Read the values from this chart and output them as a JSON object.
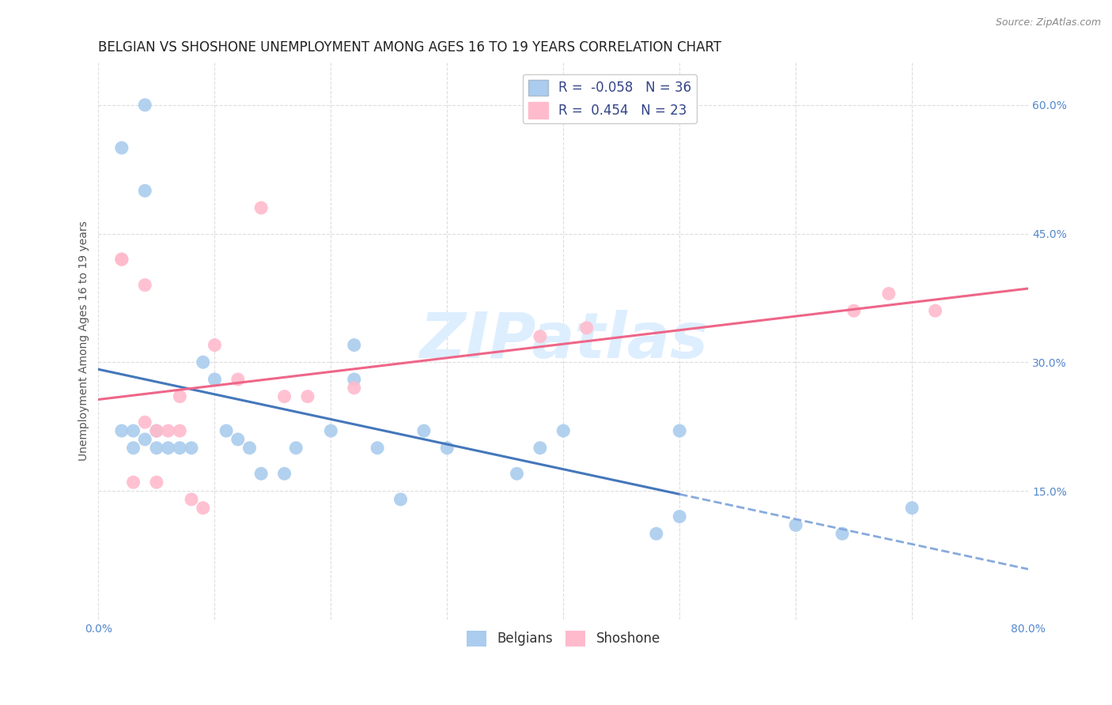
{
  "title": "BELGIAN VS SHOSHONE UNEMPLOYMENT AMONG AGES 16 TO 19 YEARS CORRELATION CHART",
  "source": "Source: ZipAtlas.com",
  "ylabel": "Unemployment Among Ages 16 to 19 years",
  "xlim": [
    0,
    0.8
  ],
  "ylim": [
    0,
    0.65
  ],
  "xtick_positions": [
    0.0,
    0.1,
    0.2,
    0.3,
    0.4,
    0.5,
    0.6,
    0.7,
    0.8
  ],
  "xticklabels": [
    "0.0%",
    "",
    "",
    "",
    "",
    "",
    "",
    "",
    "80.0%"
  ],
  "ytick_positions": [
    0.15,
    0.3,
    0.45,
    0.6
  ],
  "ytick_labels": [
    "15.0%",
    "30.0%",
    "45.0%",
    "60.0%"
  ],
  "belgians_x": [
    0.02,
    0.04,
    0.04,
    0.02,
    0.03,
    0.03,
    0.04,
    0.05,
    0.05,
    0.06,
    0.07,
    0.08,
    0.09,
    0.1,
    0.11,
    0.12,
    0.13,
    0.14,
    0.16,
    0.17,
    0.2,
    0.22,
    0.22,
    0.24,
    0.26,
    0.28,
    0.3,
    0.36,
    0.38,
    0.4,
    0.48,
    0.5,
    0.5,
    0.6,
    0.64,
    0.7
  ],
  "belgians_y": [
    0.55,
    0.6,
    0.5,
    0.22,
    0.22,
    0.2,
    0.21,
    0.2,
    0.22,
    0.2,
    0.2,
    0.2,
    0.3,
    0.28,
    0.22,
    0.21,
    0.2,
    0.17,
    0.17,
    0.2,
    0.22,
    0.32,
    0.28,
    0.2,
    0.14,
    0.22,
    0.2,
    0.17,
    0.2,
    0.22,
    0.1,
    0.22,
    0.12,
    0.11,
    0.1,
    0.13
  ],
  "shoshone_x": [
    0.02,
    0.02,
    0.03,
    0.04,
    0.04,
    0.05,
    0.05,
    0.06,
    0.07,
    0.07,
    0.08,
    0.09,
    0.1,
    0.12,
    0.14,
    0.16,
    0.18,
    0.22,
    0.38,
    0.42,
    0.65,
    0.68,
    0.72
  ],
  "shoshone_y": [
    0.42,
    0.42,
    0.16,
    0.39,
    0.23,
    0.22,
    0.16,
    0.22,
    0.26,
    0.22,
    0.14,
    0.13,
    0.32,
    0.28,
    0.48,
    0.26,
    0.26,
    0.27,
    0.33,
    0.34,
    0.36,
    0.38,
    0.36
  ],
  "r_belgian": -0.058,
  "n_belgian": 36,
  "r_shoshone": 0.454,
  "n_shoshone": 23,
  "belgian_color": "#aaccee",
  "shoshone_color": "#ffbbcc",
  "belgian_line_solid_color": "#4477bb",
  "belgian_line_dashed_color": "#88aadd",
  "shoshone_line_color": "#ee6688",
  "watermark_text": "ZIPatlas",
  "watermark_color": "#ddeeff",
  "background_color": "#ffffff",
  "grid_color": "#dddddd",
  "title_color": "#222222",
  "tick_color": "#5588cc",
  "ylabel_color": "#555555",
  "title_fontsize": 12,
  "axis_label_fontsize": 10,
  "tick_fontsize": 10,
  "legend_fontsize": 12
}
